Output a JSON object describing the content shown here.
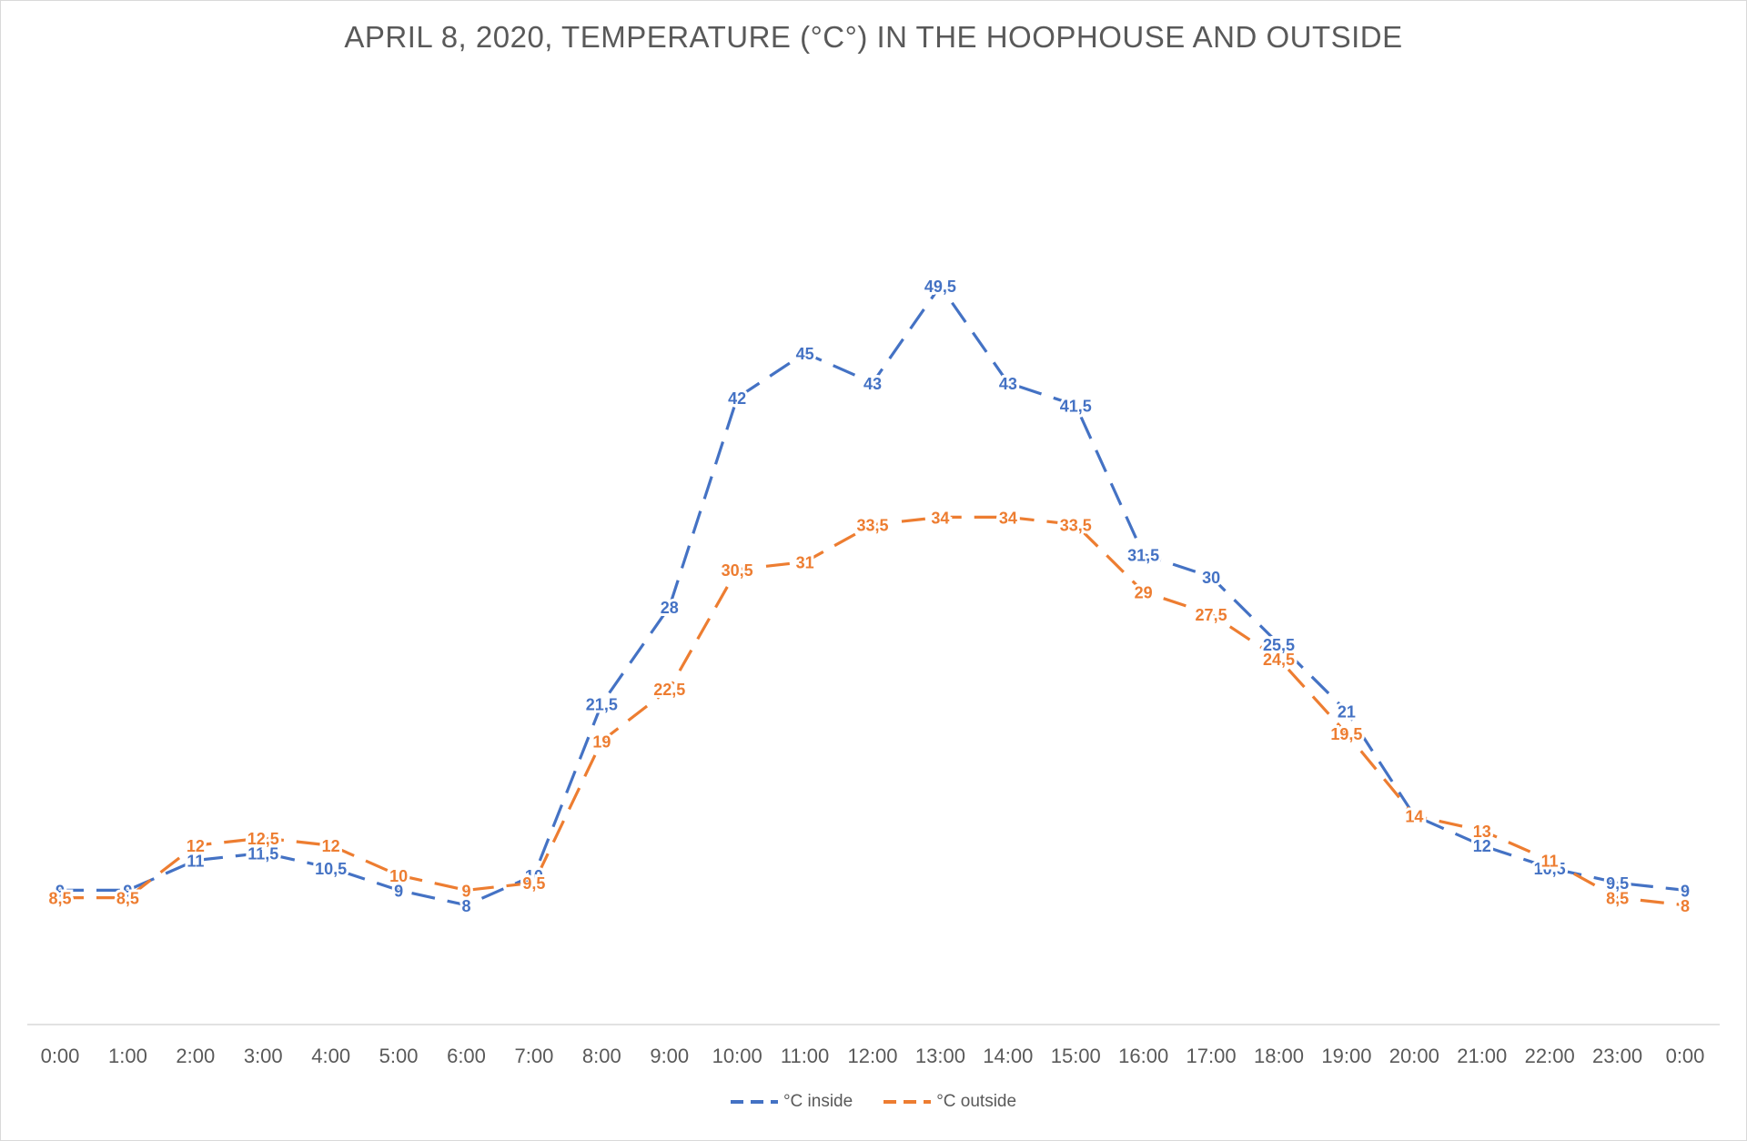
{
  "colors": {
    "inside": "#4472c4",
    "outside": "#ed7d31",
    "axis": "#d9d9d9",
    "text": "#595959"
  },
  "chart_data": {
    "type": "line",
    "title": "APRIL 8, 2020, TEMPERATURE (°C°) IN THE HOOPHOUSE AND OUTSIDE",
    "xlabel": "",
    "ylabel": "",
    "grid": false,
    "legend_position": "bottom",
    "line_style": "dashed",
    "ylim": [
      0,
      55
    ],
    "categories": [
      "0:00",
      "1:00",
      "2:00",
      "3:00",
      "4:00",
      "5:00",
      "6:00",
      "7:00",
      "8:00",
      "9:00",
      "10:00",
      "11:00",
      "12:00",
      "13:00",
      "14:00",
      "15:00",
      "16:00",
      "17:00",
      "18:00",
      "19:00",
      "20:00",
      "21:00",
      "22:00",
      "23:00",
      "0:00"
    ],
    "series": [
      {
        "name": "°C inside",
        "color": "#4472c4",
        "values": [
          9,
          9,
          11,
          11.5,
          10.5,
          9,
          8,
          10,
          21.5,
          28,
          42,
          45,
          43,
          49.5,
          43,
          41.5,
          31.5,
          30,
          25.5,
          21,
          14,
          12,
          10.5,
          9.5,
          9
        ],
        "labels": [
          "9",
          "9",
          "11",
          "11,5",
          "10,5",
          "9",
          "8",
          "10",
          "21,5",
          "28",
          "42",
          "45",
          "43",
          "49,5",
          "43",
          "41,5",
          "31,5",
          "30",
          "25,5",
          "21",
          "14",
          "12",
          "10,5",
          "9,5",
          "9"
        ]
      },
      {
        "name": "°C outside",
        "color": "#ed7d31",
        "values": [
          8.5,
          8.5,
          12,
          12.5,
          12,
          10,
          9,
          9.5,
          19,
          22.5,
          30.5,
          31,
          33.5,
          34,
          34,
          33.5,
          29,
          27.5,
          24.5,
          19.5,
          14,
          13,
          11,
          8.5,
          8
        ],
        "labels": [
          "8,5",
          "8,5",
          "12",
          "12,5",
          "12",
          "10",
          "9",
          "9,5",
          "19",
          "22,5",
          "30,5",
          "31",
          "33,5",
          "34",
          "34",
          "33,5",
          "29",
          "27,5",
          "24,5",
          "19,5",
          "14",
          "13",
          "11",
          "8,5",
          "8"
        ]
      }
    ]
  }
}
